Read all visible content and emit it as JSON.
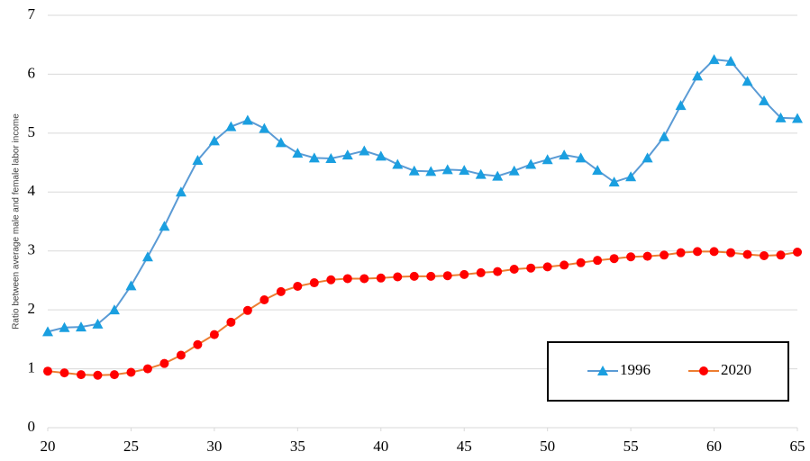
{
  "chart_data": {
    "type": "line",
    "y_label": "Ratio between average male and female labor income",
    "x": [
      20,
      21,
      22,
      23,
      24,
      25,
      26,
      27,
      28,
      29,
      30,
      31,
      32,
      33,
      34,
      35,
      36,
      37,
      38,
      39,
      40,
      41,
      42,
      43,
      44,
      45,
      46,
      47,
      48,
      49,
      50,
      51,
      52,
      53,
      54,
      55,
      56,
      57,
      58,
      59,
      60,
      61,
      62,
      63,
      64,
      65
    ],
    "series": [
      {
        "name": "1996",
        "color": "#5b9bd5",
        "marker_color": "#1a9fe0",
        "marker": "triangle",
        "values": [
          1.63,
          1.7,
          1.71,
          1.76,
          2.0,
          2.41,
          2.9,
          3.42,
          4.0,
          4.54,
          4.87,
          5.11,
          5.22,
          5.08,
          4.84,
          4.66,
          4.58,
          4.57,
          4.63,
          4.7,
          4.61,
          4.47,
          4.36,
          4.35,
          4.38,
          4.37,
          4.3,
          4.27,
          4.36,
          4.47,
          4.55,
          4.63,
          4.58,
          4.37,
          4.17,
          4.26,
          4.58,
          4.94,
          5.47,
          5.97,
          6.25,
          6.22,
          5.88,
          5.55,
          5.26,
          5.25
        ]
      },
      {
        "name": "2020",
        "color": "#ed7d31",
        "marker_color": "#ff0000",
        "marker": "circle",
        "values": [
          0.96,
          0.93,
          0.9,
          0.89,
          0.9,
          0.94,
          1.0,
          1.09,
          1.23,
          1.41,
          1.58,
          1.79,
          1.99,
          2.17,
          2.31,
          2.4,
          2.46,
          2.51,
          2.53,
          2.53,
          2.54,
          2.56,
          2.57,
          2.57,
          2.58,
          2.6,
          2.63,
          2.65,
          2.69,
          2.71,
          2.73,
          2.76,
          2.8,
          2.84,
          2.87,
          2.9,
          2.91,
          2.93,
          2.97,
          2.99,
          2.99,
          2.97,
          2.94,
          2.92,
          2.93,
          2.98
        ]
      }
    ],
    "xlim": [
      20,
      65
    ],
    "xticks": [
      20,
      25,
      30,
      35,
      40,
      45,
      50,
      55,
      60,
      65
    ],
    "ylim": [
      0,
      7
    ],
    "yticks": [
      0,
      1,
      2,
      3,
      4,
      5,
      6,
      7
    ],
    "grid": true,
    "legend": "lower right"
  }
}
